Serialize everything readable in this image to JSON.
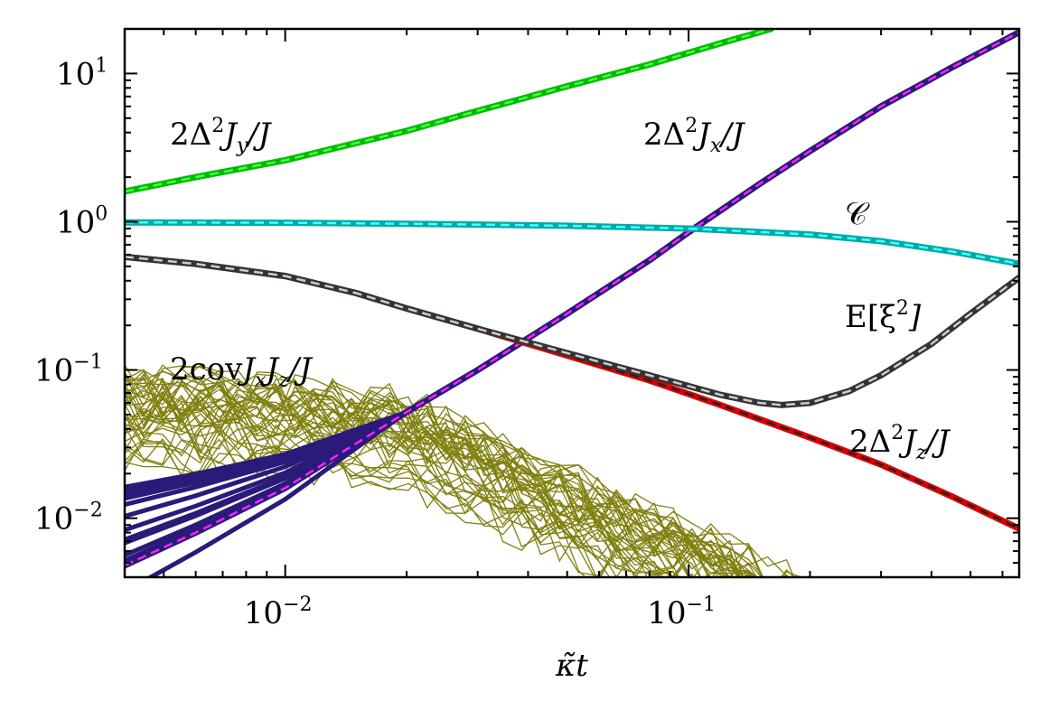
{
  "chart_data": {
    "type": "line",
    "title": "",
    "xlabel": "κ̃t",
    "ylabel": "",
    "xscale": "log",
    "yscale": "log",
    "xlim": [
      0.004,
      0.66
    ],
    "ylim": [
      0.004,
      20
    ],
    "grid": false,
    "legend": "none",
    "x_ticks": [
      {
        "base": "10",
        "exp": "−2",
        "value": 0.01
      },
      {
        "base": "10",
        "exp": "−1",
        "value": 0.1
      }
    ],
    "y_ticks": [
      {
        "base": "10",
        "exp": "−2",
        "value": 0.01
      },
      {
        "base": "10",
        "exp": "−1",
        "value": 0.1
      },
      {
        "base": "10",
        "exp": "0",
        "value": 1
      },
      {
        "base": "10",
        "exp": "1",
        "value": 10
      }
    ],
    "series": [
      {
        "name": "2Δ²J_y/J",
        "color": "#00bb00",
        "dash_color": "#44ff44",
        "label": {
          "main": "2Δ",
          "sup": "2",
          "mid": "J",
          "sub": "y",
          "tail": "/J"
        },
        "x": [
          0.004,
          0.006,
          0.01,
          0.015,
          0.02,
          0.03,
          0.05,
          0.08,
          0.12,
          0.16
        ],
        "y": [
          1.6,
          2.0,
          2.6,
          3.4,
          4.1,
          5.6,
          8.2,
          11.5,
          16,
          20
        ]
      },
      {
        "name": "2Δ²J_x/J",
        "color": "#2a1a7a",
        "dash_color": "#ff22ff",
        "label": {
          "main": "2Δ",
          "sup": "2",
          "mid": "J",
          "sub": "x",
          "tail": "/J"
        },
        "x": [
          0.004,
          0.006,
          0.01,
          0.015,
          0.02,
          0.03,
          0.05,
          0.08,
          0.1,
          0.15,
          0.2,
          0.3,
          0.45,
          0.66
        ],
        "y": [
          0.0048,
          0.008,
          0.016,
          0.032,
          0.052,
          0.1,
          0.24,
          0.55,
          0.85,
          1.8,
          3.0,
          6.0,
          11,
          19
        ]
      },
      {
        "name": "C",
        "color": "#00aaaa",
        "dash_color": "#44ffff",
        "label": {
          "main": "𝒞",
          "sup": "",
          "mid": "",
          "sub": "",
          "tail": ""
        },
        "x": [
          0.004,
          0.01,
          0.02,
          0.05,
          0.1,
          0.2,
          0.3,
          0.45,
          0.66
        ],
        "y": [
          0.99,
          0.985,
          0.97,
          0.94,
          0.9,
          0.82,
          0.74,
          0.63,
          0.52
        ]
      },
      {
        "name": "2Δ²J_z/J",
        "color": "#dd0000",
        "dash_color": "#222222",
        "label": {
          "main": "2Δ",
          "sup": "2",
          "mid": "J",
          "sub": "z",
          "tail": "/J"
        },
        "x": [
          0.004,
          0.006,
          0.01,
          0.015,
          0.02,
          0.03,
          0.05,
          0.08,
          0.12,
          0.2,
          0.3,
          0.45,
          0.66
        ],
        "y": [
          0.58,
          0.52,
          0.43,
          0.33,
          0.26,
          0.19,
          0.125,
          0.085,
          0.058,
          0.035,
          0.023,
          0.014,
          0.0085
        ]
      },
      {
        "name": "E[ξ²]",
        "color": "#333333",
        "dash_color": "#cccccc",
        "label": {
          "main": "E[ξ",
          "sup": "2",
          "mid": "]",
          "sub": "",
          "tail": ""
        },
        "x": [
          0.004,
          0.006,
          0.01,
          0.015,
          0.02,
          0.03,
          0.05,
          0.08,
          0.12,
          0.15,
          0.17,
          0.2,
          0.25,
          0.3,
          0.4,
          0.5,
          0.66
        ],
        "y": [
          0.58,
          0.52,
          0.43,
          0.33,
          0.26,
          0.19,
          0.13,
          0.092,
          0.068,
          0.06,
          0.058,
          0.06,
          0.072,
          0.092,
          0.15,
          0.24,
          0.42
        ]
      },
      {
        "name": "2covJ_xJ_z/J",
        "color": "#808010",
        "dash_color": "",
        "label": {
          "main": "2cov",
          "sup": "",
          "mid": "J",
          "sub": "x",
          "tail": "J",
          "sub2": "z",
          "tail2": "/J"
        },
        "x": [
          0.004,
          0.006,
          0.01,
          0.015,
          0.02,
          0.03,
          0.05,
          0.08,
          0.12
        ],
        "y": [
          0.06,
          0.055,
          0.05,
          0.045,
          0.038,
          0.025,
          0.012,
          0.007,
          0.0045
        ]
      }
    ]
  }
}
